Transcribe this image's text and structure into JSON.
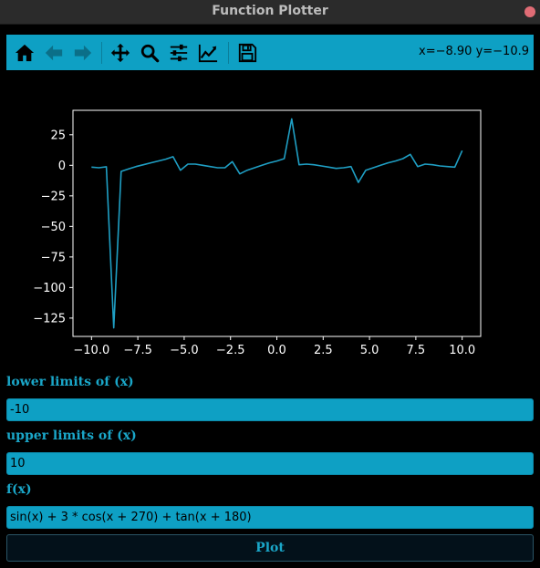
{
  "window": {
    "title": "Function Plotter"
  },
  "toolbar": {
    "buttons": [
      {
        "name": "home-icon"
      },
      {
        "name": "back-arrow-icon"
      },
      {
        "name": "forward-arrow-icon"
      },
      {
        "name": "pan-icon"
      },
      {
        "name": "zoom-icon"
      },
      {
        "name": "configure-subplots-icon"
      },
      {
        "name": "edit-axis-icon"
      },
      {
        "name": "save-icon"
      }
    ],
    "coords": "x=−8.90 y=−10.9"
  },
  "chart_data": {
    "type": "line",
    "xlim": [
      -11,
      11
    ],
    "ylim": [
      -140,
      45
    ],
    "xticks": [
      -10.0,
      -7.5,
      -5.0,
      -2.5,
      0.0,
      2.5,
      5.0,
      7.5,
      10.0
    ],
    "xtick_labels": [
      "−10.0",
      "−7.5",
      "−5.0",
      "−2.5",
      "0.0",
      "2.5",
      "5.0",
      "7.5",
      "10.0"
    ],
    "yticks": [
      25,
      0,
      -25,
      -50,
      -75,
      -100,
      -125
    ],
    "ytick_labels": [
      "25",
      "0",
      "−25",
      "−50",
      "−75",
      "−100",
      "−125"
    ],
    "line_color": "#1f9fc4",
    "series": [
      {
        "x": [
          -10.0,
          -9.6,
          -9.2,
          -8.8,
          -8.4,
          -8.0,
          -7.6,
          -7.2,
          -6.8,
          -6.4,
          -6.0,
          -5.6,
          -5.2,
          -4.8,
          -4.4,
          -4.0,
          -3.6,
          -3.2,
          -2.8,
          -2.4,
          -2.0,
          -1.6,
          -1.2,
          -0.8,
          -0.4,
          0.0,
          0.4,
          0.8,
          1.2,
          1.6,
          2.0,
          2.4,
          2.8,
          3.2,
          3.6,
          4.0,
          4.4,
          4.8,
          5.2,
          5.6,
          6.0,
          6.4,
          6.8,
          7.2,
          7.6,
          8.0,
          8.4,
          8.8,
          9.2,
          9.6,
          10.0
        ],
        "y": [
          -1.5,
          -2.0,
          -1.2,
          -133.0,
          -5.0,
          -3.0,
          -1.0,
          0.5,
          2.0,
          3.5,
          5.0,
          7.0,
          -4.0,
          1.0,
          1.0,
          0.0,
          -1.0,
          -2.0,
          -2.0,
          3.0,
          -7.0,
          -4.0,
          -2.0,
          0.0,
          2.0,
          3.5,
          5.5,
          38.0,
          0.5,
          1.0,
          0.5,
          -0.5,
          -1.5,
          -2.5,
          -2.0,
          -1.0,
          -14.0,
          -4.0,
          -2.0,
          0.0,
          2.0,
          3.5,
          5.5,
          9.0,
          -1.0,
          1.0,
          0.5,
          -0.5,
          -1.0,
          -1.5,
          12.0
        ]
      }
    ]
  },
  "form": {
    "lower_label": "lower limits of (x)",
    "lower_value": "-10",
    "upper_label": "upper limits of (x)",
    "upper_value": "10",
    "fx_label": "f(x)",
    "fx_value": "sin(x) + 3 * cos(x + 270) + tan(x + 180)",
    "plot_button": "Plot"
  }
}
